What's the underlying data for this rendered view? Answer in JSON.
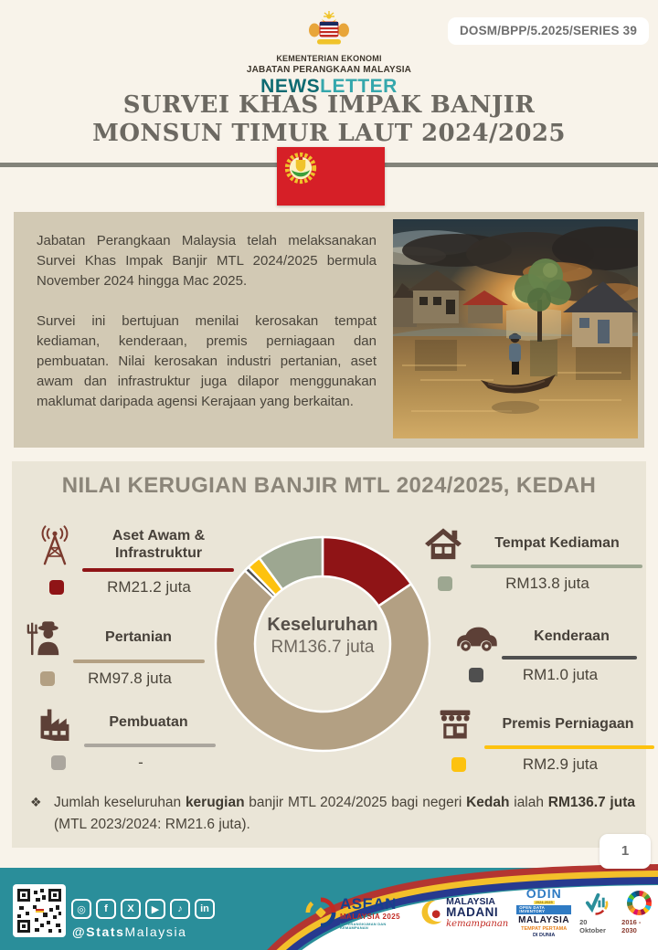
{
  "series_badge": "DOSM/BPP/5.2025/SERIES 39",
  "masthead": {
    "ministry": "KEMENTERIAN EKONOMI",
    "department": "JABATAN PERANGKAAN MALAYSIA",
    "newsletter_news": "NEWS",
    "newsletter_letter": "LETTER"
  },
  "title": {
    "line1": "SURVEI KHAS IMPAK BANJIR",
    "line2": "MONSUN TIMUR LAUT 2024/2025"
  },
  "intro": {
    "para1": "Jabatan Perangkaan Malaysia telah melaksanakan Survei Khas Impak Banjir MTL 2024/2025 bermula November 2024 hingga Mac 2025.",
    "para2": "Survei ini bertujuan menilai kerosakan tempat kediaman, kenderaan, premis perniagaan dan pembuatan. Nilai kerosakan industri pertanian, aset awam dan infrastruktur juga dilapor menggunakan maklumat daripada agensi Kerajaan yang berkaitan."
  },
  "chart_data": {
    "type": "pie",
    "title": "NILAI KERUGIAN BANJIR MTL 2024/2025, KEDAH",
    "center_label": "Keseluruhan",
    "center_value": "RM136.7 juta",
    "total": 136.7,
    "unit": "RM juta",
    "legend_position": "left-right of donut",
    "series": [
      {
        "name": "Aset Awam & Infrastruktur",
        "value": 21.2,
        "display": "RM21.2 juta",
        "color": "#8f1416",
        "icon": "signal-tower-icon"
      },
      {
        "name": "Pertanian",
        "value": 97.8,
        "display": "RM97.8 juta",
        "color": "#b3a083",
        "icon": "farmer-icon"
      },
      {
        "name": "Pembuatan",
        "value": 0,
        "display": "-",
        "color": "#aba69e",
        "icon": "factory-icon"
      },
      {
        "name": "Kenderaan",
        "value": 1.0,
        "display": "RM1.0 juta",
        "color": "#4f4f4f",
        "icon": "car-icon"
      },
      {
        "name": "Premis Perniagaan",
        "value": 2.9,
        "display": "RM2.9 juta",
        "color": "#fdc20f",
        "icon": "store-icon"
      },
      {
        "name": "Tempat Kediaman",
        "value": 13.8,
        "display": "RM13.8 juta",
        "color": "#9da791",
        "icon": "house-icon"
      }
    ]
  },
  "summary": {
    "marker": "❖",
    "seg1": "Jumlah keseluruhan ",
    "bold1": "kerugian",
    "seg2": " banjir MTL 2024/2025 bagi negeri ",
    "bold2": "Kedah",
    "seg3": " ialah ",
    "bold3": "RM136.7 juta",
    "seg4": " (MTL 2023/2024:  RM21.6 juta)."
  },
  "page_number": "1",
  "footer": {
    "handle_bold": "@Stats",
    "handle_rest": "Malaysia",
    "social": [
      {
        "name": "instagram",
        "glyph": "◎"
      },
      {
        "name": "facebook",
        "glyph": "f"
      },
      {
        "name": "x",
        "glyph": "X"
      },
      {
        "name": "youtube",
        "glyph": "▶"
      },
      {
        "name": "tiktok",
        "glyph": "♪"
      },
      {
        "name": "linkedin",
        "glyph": "in"
      }
    ],
    "asean": {
      "name": "ASEAN",
      "sub": "MALAYSIA 2025",
      "tagline": "KETERANGKUMAN DAN KEMAMPANAN"
    },
    "madani": {
      "line1": "MALAYSIA",
      "line2": "MADANI",
      "script": "kemampanan"
    },
    "odin": {
      "title": "ODIN",
      "years": "2024-2025",
      "bar": "OPEN DATA INVENTORY",
      "country": "MALAYSIA",
      "rank": "TEMPAT PERTAMA",
      "world": "DI DUNIA"
    },
    "stats_day": "20 Oktober",
    "sdg_years": "2016 - 2030"
  },
  "colors": {
    "page_bg": "#f8f3ea",
    "intro_panel_bg": "#d2c9b4",
    "chart_panel_bg": "#eae5d7",
    "footer_teal": "#2a8e9a",
    "flag_red": "#d61f27",
    "title_gray": "#6c6962",
    "newsletter_teal_dark": "#0e6b72",
    "newsletter_teal_light": "#35a7ac"
  }
}
